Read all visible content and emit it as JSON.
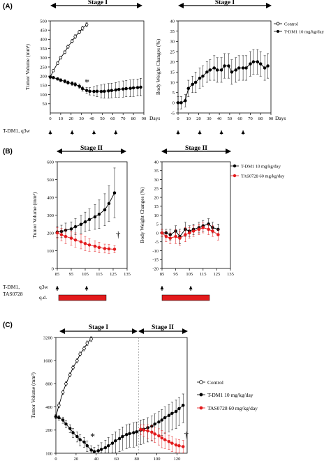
{
  "panels": [
    {
      "id": "A",
      "label": "(A)"
    },
    {
      "id": "B",
      "label": "(B)"
    },
    {
      "id": "C",
      "label": "(C)"
    }
  ],
  "stages": {
    "stage1": "Stage I",
    "stage2": "Stage II"
  },
  "units": {
    "days": "Days"
  },
  "dosing": {
    "a_label": "T-DM1, q3w",
    "b_label_1": "T-DM1,",
    "b_label_2": "TAS0728",
    "b_sched_1": "q3w",
    "b_sched_2": "q.d."
  },
  "colors": {
    "black_series": "#000000",
    "red_series": "#e31a1c",
    "bar_fill": "#e31a1c"
  },
  "chart_data": [
    {
      "id": "A-tumor",
      "type": "line",
      "title": "",
      "ylabel": "Tumor Volume (mm³)",
      "xlabel": "Days",
      "xlim": [
        0,
        90
      ],
      "ylim": [
        0,
        500
      ],
      "xticks": [
        "0",
        "10",
        "20",
        "30",
        "40",
        "50",
        "60",
        "70",
        "80",
        "90"
      ],
      "yticks": [
        "50",
        "100",
        "150",
        "200",
        "250",
        "300",
        "350",
        "400",
        "450",
        "500"
      ],
      "annotation": "*",
      "series": [
        {
          "style": "open",
          "x": [
            0,
            3,
            7,
            10,
            14,
            17,
            21,
            24,
            28,
            31,
            35
          ],
          "y": [
            195,
            230,
            270,
            300,
            330,
            360,
            390,
            415,
            440,
            460,
            480
          ],
          "err": [
            5,
            6,
            8,
            8,
            8,
            9,
            10,
            10,
            10,
            11,
            12
          ]
        },
        {
          "style": "filled",
          "x": [
            0,
            3,
            7,
            10,
            14,
            17,
            21,
            24,
            28,
            31,
            35,
            38,
            42,
            45,
            49,
            52,
            56,
            59,
            63,
            66,
            70,
            73,
            77,
            80,
            84,
            87
          ],
          "y": [
            195,
            192,
            185,
            178,
            172,
            165,
            160,
            155,
            145,
            132,
            122,
            118,
            117,
            118,
            117,
            118,
            120,
            122,
            125,
            128,
            130,
            132,
            134,
            136,
            138,
            140
          ],
          "err": [
            5,
            6,
            7,
            8,
            9,
            9,
            10,
            10,
            12,
            14,
            16,
            20,
            24,
            30,
            35,
            38,
            40,
            40,
            40,
            42,
            44,
            44,
            45,
            46,
            46,
            48
          ]
        }
      ]
    },
    {
      "id": "A-body",
      "type": "line",
      "title": "",
      "ylabel": "Body Weight Changes (%)",
      "xlabel": "Days",
      "xlim": [
        0,
        90
      ],
      "ylim": [
        -5,
        40
      ],
      "xticks": [
        "0",
        "10",
        "20",
        "30",
        "40",
        "50",
        "60",
        "70",
        "80",
        "90"
      ],
      "yticks": [
        "-5",
        "0",
        "5",
        "10",
        "15",
        "20",
        "25",
        "30",
        "35",
        "40"
      ],
      "legend": [
        "Control",
        "T-DM1 10 mg/kg/day"
      ],
      "series": [
        {
          "name": "T-DM1 10 mg/kg/day",
          "x": [
            0,
            3,
            7,
            10,
            14,
            17,
            21,
            24,
            28,
            31,
            35,
            38,
            42,
            45,
            49,
            52,
            56,
            59,
            63,
            66,
            70,
            73,
            77,
            80,
            84,
            87
          ],
          "y": [
            0,
            0,
            1,
            7,
            9,
            10,
            12,
            13,
            15,
            16,
            17,
            16,
            16,
            18,
            18,
            15,
            16,
            17,
            17,
            17,
            19,
            20,
            20,
            19,
            17,
            18
          ],
          "err": [
            3,
            3,
            3,
            4,
            4,
            5,
            5,
            5,
            5,
            5,
            6,
            6,
            6,
            6,
            6,
            6,
            6,
            6,
            6,
            6,
            6,
            6,
            6,
            6,
            6,
            6
          ]
        }
      ]
    },
    {
      "id": "B-tumor",
      "type": "line",
      "title": "",
      "ylabel": "Tumor Volume (mm³)",
      "xlabel": "",
      "xlim": [
        85,
        135
      ],
      "ylim": [
        0,
        600
      ],
      "xticks": [
        "85",
        "95",
        "105",
        "115",
        "125",
        "135"
      ],
      "yticks": [
        "0",
        "100",
        "200",
        "300",
        "400",
        "500",
        "600"
      ],
      "annotation": "†",
      "legend": [
        "T-DM1 10 mg/kg/day",
        "TAS0728 60 mg/kg/day"
      ],
      "series": [
        {
          "name": "T-DM1 10 mg/kg/day",
          "x": [
            85,
            88,
            91,
            95,
            98,
            102,
            105,
            108,
            112,
            115,
            119,
            122,
            126
          ],
          "y": [
            205,
            208,
            215,
            222,
            235,
            248,
            262,
            275,
            290,
            305,
            330,
            365,
            425
          ],
          "err": [
            30,
            35,
            40,
            40,
            45,
            50,
            55,
            60,
            70,
            80,
            90,
            100,
            140
          ]
        },
        {
          "name": "TAS0728 60 mg/kg/day",
          "x": [
            85,
            88,
            91,
            95,
            98,
            102,
            105,
            108,
            112,
            115,
            119,
            122,
            126
          ],
          "y": [
            200,
            190,
            180,
            170,
            160,
            150,
            140,
            132,
            125,
            118,
            112,
            110,
            108
          ],
          "err": [
            30,
            35,
            40,
            40,
            40,
            40,
            40,
            35,
            30,
            30,
            25,
            25,
            20
          ]
        }
      ]
    },
    {
      "id": "B-body",
      "type": "line",
      "title": "",
      "ylabel": "Body Weight Changes (%)",
      "xlabel": "",
      "xlim": [
        85,
        135
      ],
      "ylim": [
        -20,
        40
      ],
      "xticks": [
        "85",
        "95",
        "105",
        "115",
        "125",
        "135"
      ],
      "yticks": [
        "-20",
        "-15",
        "-10",
        "-5",
        "0",
        "5",
        "10",
        "15",
        "20",
        "25",
        "30",
        "35",
        "40"
      ],
      "series": [
        {
          "name": "T-DM1 10 mg/kg/day",
          "x": [
            85,
            88,
            91,
            95,
            98,
            102,
            105,
            108,
            112,
            115,
            119,
            122,
            126
          ],
          "y": [
            0,
            0,
            -1,
            1,
            -2,
            2,
            1,
            2,
            3,
            4,
            5,
            3,
            2
          ],
          "err": [
            2,
            2,
            3,
            3,
            4,
            4,
            3,
            3,
            3,
            3,
            3,
            3,
            3
          ]
        },
        {
          "name": "TAS0728 60 mg/kg/day",
          "x": [
            85,
            88,
            91,
            95,
            98,
            102,
            105,
            108,
            112,
            115,
            119,
            122,
            126
          ],
          "y": [
            0,
            -2,
            -3,
            -2,
            -3,
            -1,
            0,
            1,
            2,
            3,
            2,
            1,
            -1
          ],
          "err": [
            2,
            3,
            3,
            4,
            4,
            4,
            3,
            3,
            3,
            3,
            3,
            3,
            3
          ]
        }
      ]
    },
    {
      "id": "C-tumor",
      "type": "line",
      "title": "",
      "ylabel": "Tumor Volume (mm³)",
      "xlabel": "Days",
      "xlim": [
        0,
        130
      ],
      "ylim": [
        100,
        3200
      ],
      "yscale": "log",
      "xticks": [
        "0",
        "20",
        "40",
        "60",
        "80",
        "100",
        "120"
      ],
      "yticks": [
        "100",
        "200",
        "400",
        "800",
        "1600",
        "3200"
      ],
      "annotation_1": "*",
      "annotation_2": "†",
      "legend": [
        "Control",
        "T-DM1 10 mg/kg/day",
        "TAS0728 60 mg/kg/day"
      ],
      "series": [
        {
          "name": "Control",
          "x": [
            0,
            3,
            7,
            10,
            14,
            17,
            21,
            24,
            28,
            31,
            35
          ],
          "y": [
            300,
            420,
            620,
            800,
            1050,
            1300,
            1600,
            1950,
            2300,
            2700,
            3050
          ],
          "err": [
            20,
            30,
            40,
            50,
            60,
            80,
            100,
            120,
            150,
            180,
            220
          ]
        },
        {
          "name": "T-DM1 10 mg/kg/day",
          "x": [
            0,
            3,
            7,
            10,
            14,
            17,
            21,
            24,
            28,
            31,
            35,
            38,
            42,
            45,
            49,
            52,
            56,
            59,
            63,
            66,
            70,
            73,
            77,
            80,
            84,
            87,
            91,
            95,
            98,
            102,
            105,
            108,
            112,
            115,
            119,
            122,
            126
          ],
          "y": [
            300,
            290,
            270,
            240,
            210,
            185,
            165,
            150,
            140,
            125,
            110,
            105,
            108,
            112,
            118,
            125,
            135,
            145,
            155,
            165,
            175,
            180,
            185,
            190,
            200,
            205,
            215,
            225,
            240,
            255,
            270,
            290,
            310,
            330,
            350,
            380,
            420
          ],
          "err": [
            20,
            20,
            25,
            25,
            25,
            25,
            25,
            25,
            20,
            20,
            15,
            15,
            20,
            25,
            30,
            35,
            40,
            45,
            50,
            55,
            60,
            60,
            65,
            65,
            70,
            70,
            75,
            80,
            85,
            90,
            100,
            110,
            120,
            130,
            140,
            150,
            170
          ]
        },
        {
          "name": "TAS0728 60 mg/kg/day",
          "x": [
            84,
            87,
            91,
            95,
            98,
            102,
            105,
            108,
            112,
            115,
            119,
            122,
            126
          ],
          "y": [
            205,
            200,
            195,
            188,
            178,
            168,
            158,
            150,
            142,
            135,
            128,
            125,
            122
          ],
          "err": [
            30,
            35,
            40,
            40,
            40,
            40,
            40,
            35,
            30,
            30,
            25,
            25,
            25
          ]
        }
      ]
    }
  ]
}
